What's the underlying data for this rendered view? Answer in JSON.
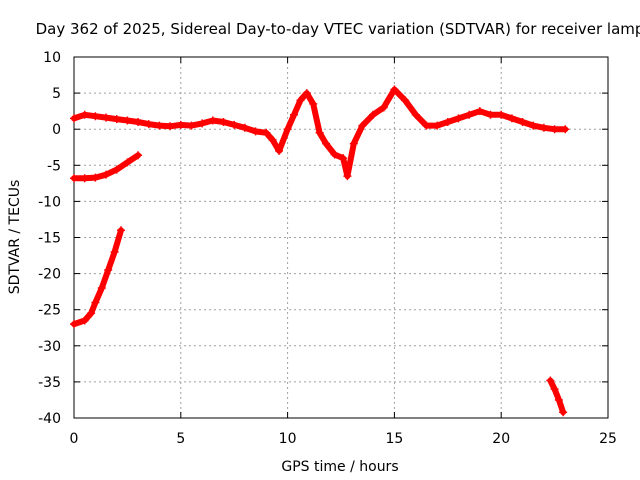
{
  "chart_data": {
    "type": "scatter",
    "title": "Day 362 of 2025, Sidereal Day-to-day VTEC variation (SDTVAR) for receiver lamp",
    "xlabel": "GPS time / hours",
    "ylabel": "SDTVAR / TECUs",
    "xlim": [
      0,
      25
    ],
    "ylim": [
      -40,
      10
    ],
    "xticks": [
      0,
      5,
      10,
      15,
      20,
      25
    ],
    "yticks": [
      10,
      5,
      0,
      -5,
      -10,
      -15,
      -20,
      -25,
      -30,
      -35,
      -40
    ],
    "grid": true,
    "marker": "plus",
    "series": [
      {
        "name": "main-band",
        "color": "#ff0000",
        "points": [
          [
            0,
            1.5
          ],
          [
            0.5,
            2
          ],
          [
            1,
            1.8
          ],
          [
            1.5,
            1.6
          ],
          [
            2,
            1.4
          ],
          [
            2.5,
            1.2
          ],
          [
            3,
            1
          ],
          [
            3.5,
            0.7
          ],
          [
            4,
            0.5
          ],
          [
            4.5,
            0.4
          ],
          [
            5,
            0.6
          ],
          [
            5.5,
            0.5
          ],
          [
            6,
            0.8
          ],
          [
            6.5,
            1.2
          ],
          [
            7,
            1
          ],
          [
            7.5,
            0.6
          ],
          [
            8,
            0.2
          ],
          [
            8.5,
            -0.3
          ],
          [
            9,
            -0.5
          ],
          [
            9.3,
            -1.5
          ],
          [
            9.6,
            -3
          ],
          [
            10,
            0
          ],
          [
            10.3,
            2
          ],
          [
            10.6,
            4
          ],
          [
            10.9,
            5
          ],
          [
            11.2,
            3.5
          ],
          [
            11.5,
            -0.5
          ],
          [
            11.8,
            -2
          ],
          [
            12.2,
            -3.5
          ],
          [
            12.6,
            -4
          ],
          [
            12.8,
            -6.5
          ],
          [
            13.1,
            -2
          ],
          [
            13.5,
            0.5
          ],
          [
            14,
            2
          ],
          [
            14.5,
            3
          ],
          [
            15,
            5.5
          ],
          [
            15.5,
            4
          ],
          [
            16,
            2
          ],
          [
            16.5,
            0.5
          ],
          [
            17,
            0.5
          ],
          [
            17.5,
            1
          ],
          [
            18,
            1.5
          ],
          [
            18.5,
            2
          ],
          [
            19,
            2.5
          ],
          [
            19.5,
            2
          ],
          [
            20,
            2
          ],
          [
            20.5,
            1.5
          ],
          [
            21,
            1
          ],
          [
            21.5,
            0.5
          ],
          [
            22,
            0.2
          ],
          [
            22.5,
            0
          ],
          [
            23,
            0
          ]
        ]
      },
      {
        "name": "negative-segment",
        "color": "#ff0000",
        "points": [
          [
            0,
            -6.8
          ],
          [
            0.5,
            -6.8
          ],
          [
            1,
            -6.7
          ],
          [
            1.5,
            -6.3
          ],
          [
            2,
            -5.6
          ],
          [
            2.5,
            -4.6
          ],
          [
            3,
            -3.6
          ]
        ]
      },
      {
        "name": "deep-negative-segment",
        "color": "#ff0000",
        "points": [
          [
            0,
            -27
          ],
          [
            0.5,
            -26.5
          ],
          [
            0.8,
            -25.5
          ],
          [
            1,
            -24
          ],
          [
            1.3,
            -22
          ],
          [
            1.6,
            -19.5
          ],
          [
            1.9,
            -17
          ],
          [
            2.2,
            -14
          ]
        ]
      },
      {
        "name": "late-negative-segment",
        "color": "#ff0000",
        "points": [
          [
            22.3,
            -34.8
          ],
          [
            22.5,
            -36
          ],
          [
            22.7,
            -37.5
          ],
          [
            22.9,
            -39.2
          ]
        ]
      }
    ]
  }
}
